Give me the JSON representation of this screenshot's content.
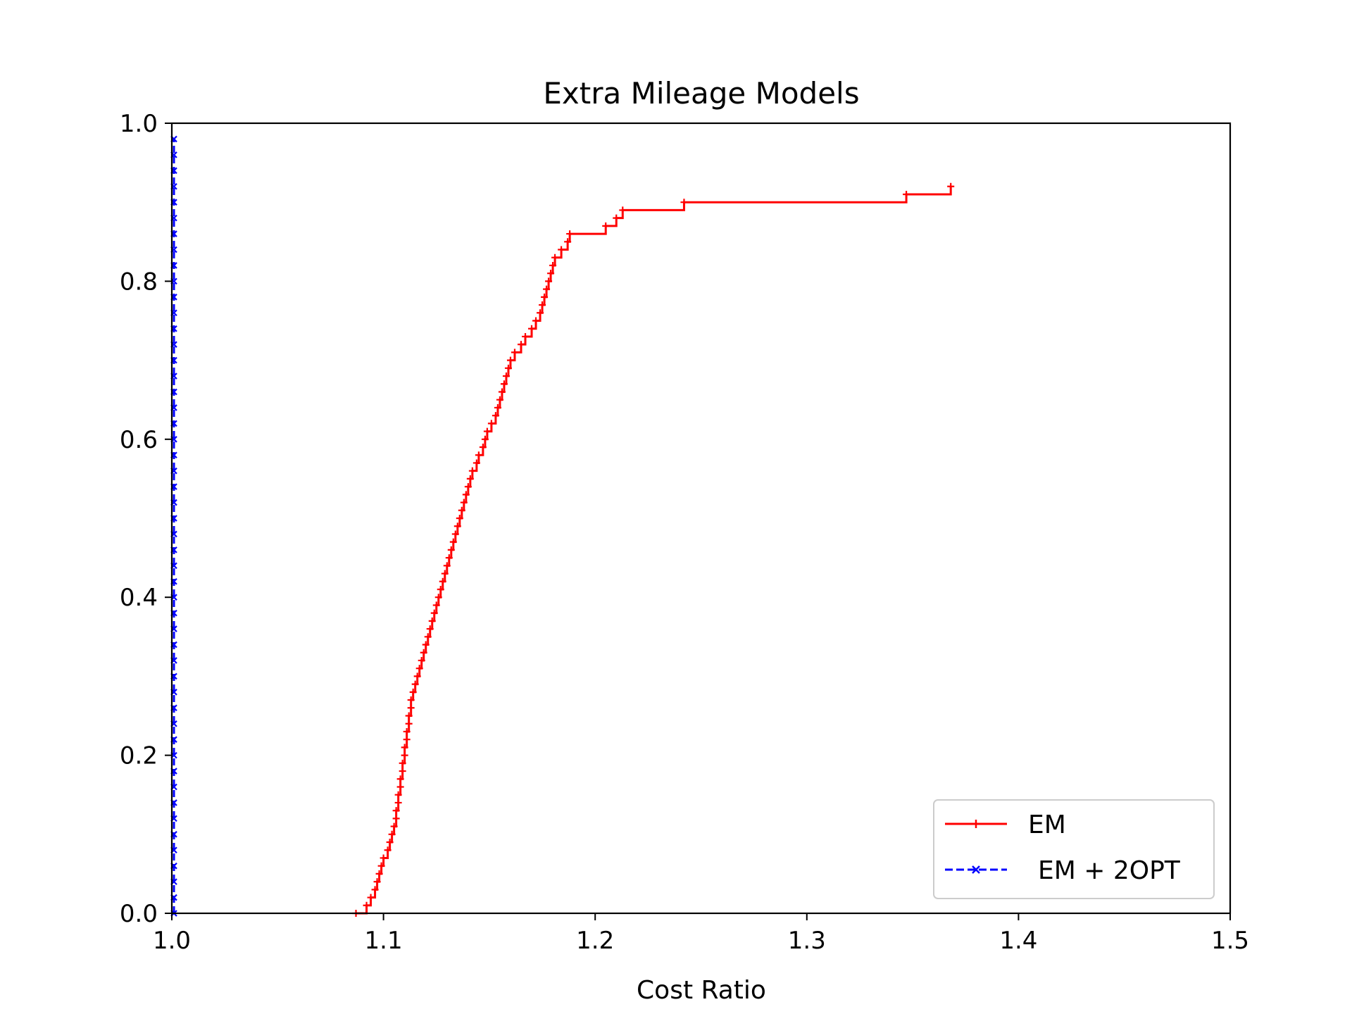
{
  "chart_data": {
    "type": "line",
    "title": "Extra Mileage Models",
    "xlabel": "Cost Ratio",
    "ylabel": "",
    "xlim": [
      1.0,
      1.5
    ],
    "ylim": [
      0.0,
      1.0
    ],
    "xticks": [
      "1.0",
      "1.1",
      "1.2",
      "1.3",
      "1.4",
      "1.5"
    ],
    "yticks": [
      "0.0",
      "0.2",
      "0.4",
      "0.6",
      "0.8",
      "1.0"
    ],
    "legend_position": "bottom-right",
    "grid": false,
    "series": [
      {
        "name": "EM",
        "color": "#ff0000",
        "linestyle": "solid",
        "marker": "plus",
        "x": [
          1.087,
          1.092,
          1.094,
          1.096,
          1.097,
          1.098,
          1.099,
          1.1,
          1.102,
          1.103,
          1.104,
          1.105,
          1.106,
          1.106,
          1.107,
          1.107,
          1.108,
          1.108,
          1.109,
          1.109,
          1.11,
          1.11,
          1.111,
          1.111,
          1.112,
          1.112,
          1.113,
          1.113,
          1.114,
          1.115,
          1.116,
          1.117,
          1.118,
          1.119,
          1.12,
          1.121,
          1.122,
          1.123,
          1.124,
          1.125,
          1.126,
          1.127,
          1.128,
          1.129,
          1.13,
          1.131,
          1.132,
          1.133,
          1.134,
          1.135,
          1.136,
          1.137,
          1.138,
          1.139,
          1.14,
          1.141,
          1.142,
          1.144,
          1.145,
          1.147,
          1.148,
          1.149,
          1.151,
          1.153,
          1.154,
          1.155,
          1.156,
          1.157,
          1.158,
          1.159,
          1.16,
          1.162,
          1.165,
          1.167,
          1.17,
          1.172,
          1.174,
          1.175,
          1.176,
          1.177,
          1.178,
          1.179,
          1.18,
          1.181,
          1.184,
          1.187,
          1.188,
          1.205,
          1.21,
          1.213,
          1.242,
          1.347,
          1.368
        ],
        "y": [
          0.0,
          0.01,
          0.02,
          0.03,
          0.04,
          0.05,
          0.06,
          0.07,
          0.08,
          0.09,
          0.1,
          0.11,
          0.12,
          0.13,
          0.14,
          0.15,
          0.16,
          0.17,
          0.18,
          0.19,
          0.2,
          0.21,
          0.22,
          0.23,
          0.24,
          0.25,
          0.26,
          0.27,
          0.28,
          0.29,
          0.3,
          0.31,
          0.32,
          0.33,
          0.34,
          0.35,
          0.36,
          0.37,
          0.38,
          0.39,
          0.4,
          0.41,
          0.42,
          0.43,
          0.44,
          0.45,
          0.46,
          0.47,
          0.48,
          0.49,
          0.5,
          0.51,
          0.52,
          0.53,
          0.54,
          0.55,
          0.56,
          0.57,
          0.58,
          0.59,
          0.6,
          0.61,
          0.62,
          0.63,
          0.64,
          0.65,
          0.66,
          0.67,
          0.68,
          0.69,
          0.7,
          0.71,
          0.72,
          0.73,
          0.74,
          0.75,
          0.76,
          0.77,
          0.78,
          0.79,
          0.8,
          0.81,
          0.82,
          0.83,
          0.84,
          0.85,
          0.86,
          0.87,
          0.88,
          0.89,
          0.9,
          0.91,
          0.92
        ]
      },
      {
        "name": "EM + 2OPT",
        "color": "#0000ff",
        "linestyle": "dashed",
        "marker": "x",
        "x": [
          1.001,
          1.001,
          1.001,
          1.001,
          1.001,
          1.001,
          1.001,
          1.001,
          1.001,
          1.001,
          1.001,
          1.001,
          1.001,
          1.001,
          1.001,
          1.001,
          1.001,
          1.001,
          1.001,
          1.001,
          1.001,
          1.001,
          1.001,
          1.001,
          1.001,
          1.001,
          1.001,
          1.001,
          1.001,
          1.001,
          1.001,
          1.001,
          1.001,
          1.001,
          1.001,
          1.001,
          1.001,
          1.001,
          1.001,
          1.001,
          1.001,
          1.001,
          1.001,
          1.001,
          1.001,
          1.001,
          1.001,
          1.001,
          1.001,
          1.001
        ],
        "y": [
          0.0,
          0.02,
          0.04,
          0.06,
          0.08,
          0.1,
          0.12,
          0.14,
          0.16,
          0.18,
          0.2,
          0.22,
          0.24,
          0.26,
          0.28,
          0.3,
          0.32,
          0.34,
          0.36,
          0.38,
          0.4,
          0.42,
          0.44,
          0.46,
          0.48,
          0.5,
          0.52,
          0.54,
          0.56,
          0.58,
          0.6,
          0.62,
          0.64,
          0.66,
          0.68,
          0.7,
          0.72,
          0.74,
          0.76,
          0.78,
          0.8,
          0.82,
          0.84,
          0.86,
          0.88,
          0.9,
          0.92,
          0.94,
          0.96,
          0.98
        ]
      }
    ]
  }
}
